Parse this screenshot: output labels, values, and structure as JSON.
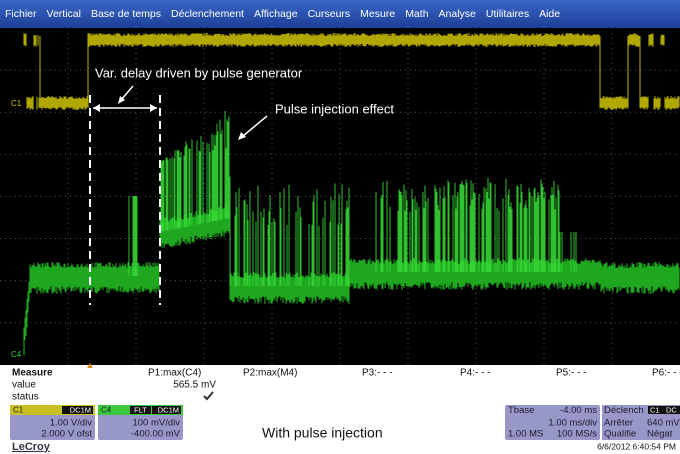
{
  "menu": [
    "Fichier",
    "Vertical",
    "Base de temps",
    "Déclenchement",
    "Affichage",
    "Curseurs",
    "Mesure",
    "Math",
    "Analyse",
    "Utilitaires",
    "Aide"
  ],
  "screen": {
    "annotations": {
      "delay": "Var. delay driven by pulse generator",
      "pulse": "Pulse injection effect"
    },
    "c1_marker": "C1",
    "c4_marker": "C4"
  },
  "measure": {
    "title": "Measure",
    "rows": [
      "value",
      "status"
    ],
    "params": [
      {
        "name": "P1:max(C4)",
        "value": "565.5 mV"
      },
      {
        "name": "P2:max(M4)"
      },
      {
        "name": "P3:- - -"
      },
      {
        "name": "P4:- - -"
      },
      {
        "name": "P5:- - -"
      },
      {
        "name": "P6:- - -"
      }
    ]
  },
  "channels": [
    {
      "name": "C1",
      "coupling": "DC1M",
      "scale": "1.00 V/div",
      "offset": "2.000 V ofst"
    },
    {
      "name": "C4",
      "flags": "FLT",
      "coupling": "DC1M",
      "scale": "100 mV/div",
      "offset": "-400.00 mV"
    }
  ],
  "caption": "With pulse injection",
  "timebase": {
    "title": "Tbase",
    "delay": "-4.00 ms",
    "scale": "1.00 ms/div",
    "memory": "1.00 MS",
    "rate": "100 MS/s"
  },
  "trigger": {
    "title": "Déclench",
    "source": "C1",
    "coupling": "DC",
    "mode": "Arrêter",
    "level": "640 mV",
    "type": "Qualifie",
    "slope": "Négat"
  },
  "brand": "LeCroy",
  "timestamp": "6/6/2012 6:40:54 PM"
}
